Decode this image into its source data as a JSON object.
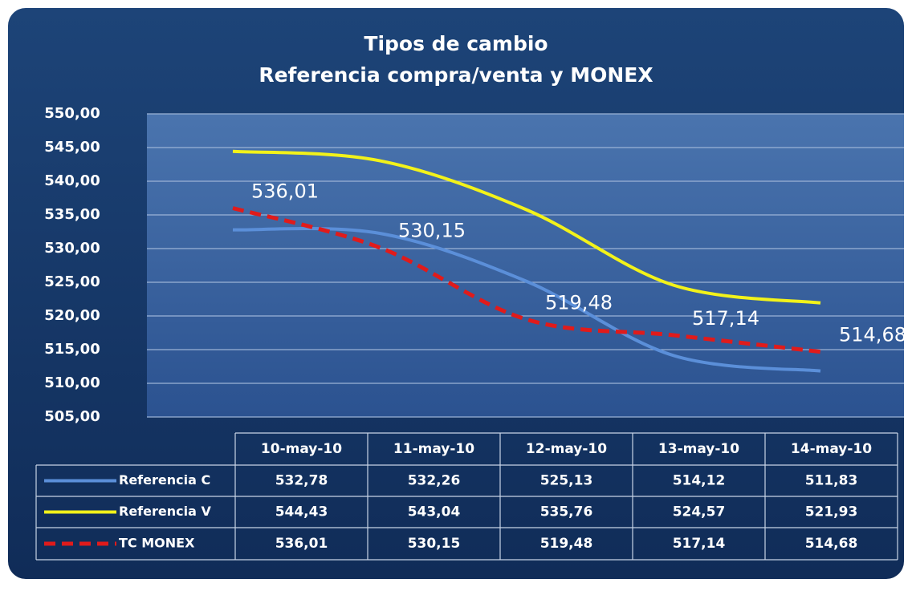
{
  "chart_data": {
    "type": "line",
    "title": "Tipos de cambio",
    "subtitle": "Referencia compra/venta y MONEX",
    "categories": [
      "10-may-10",
      "11-may-10",
      "12-may-10",
      "13-may-10",
      "14-may-10"
    ],
    "series": [
      {
        "name": "Referencia C",
        "color": "#5b8fd9",
        "values": [
          532.78,
          532.26,
          525.13,
          514.12,
          511.83
        ],
        "value_labels": [
          "532,78",
          "532,26",
          "525,13",
          "514,12",
          "511,83"
        ]
      },
      {
        "name": "Referencia V",
        "color": "#f2f21a",
        "values": [
          544.43,
          543.04,
          535.76,
          524.57,
          521.93
        ],
        "value_labels": [
          "544,43",
          "543,04",
          "535,76",
          "524,57",
          "521,93"
        ]
      },
      {
        "name": "TC MONEX",
        "color": "#e01b1b",
        "dashed": true,
        "data_labels": true,
        "values": [
          536.01,
          530.15,
          519.48,
          517.14,
          514.68
        ],
        "value_labels": [
          "536,01",
          "530,15",
          "519,48",
          "517,14",
          "514,68"
        ]
      }
    ],
    "ylim": [
      505,
      550
    ],
    "yticks": [
      {
        "value": 505,
        "label": "505,00"
      },
      {
        "value": 510,
        "label": "510,00"
      },
      {
        "value": 515,
        "label": "515,00"
      },
      {
        "value": 520,
        "label": "520,00"
      },
      {
        "value": 525,
        "label": "525,00"
      },
      {
        "value": 530,
        "label": "530,00"
      },
      {
        "value": 535,
        "label": "535,00"
      },
      {
        "value": 540,
        "label": "540,00"
      },
      {
        "value": 545,
        "label": "545,00"
      },
      {
        "value": 550,
        "label": "550,00"
      }
    ],
    "grid": true,
    "smooth": true
  }
}
